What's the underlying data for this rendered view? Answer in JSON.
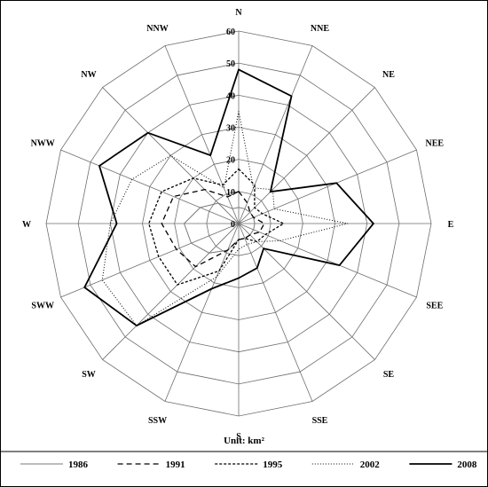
{
  "chart_data": {
    "type": "radar",
    "directions": [
      "N",
      "NNE",
      "NE",
      "NEE",
      "E",
      "SEE",
      "SE",
      "SSE",
      "S",
      "SSW",
      "SW",
      "SWW",
      "W",
      "NWW",
      "NW",
      "NNW"
    ],
    "radial_ticks": [
      0,
      10,
      20,
      30,
      40,
      50,
      60
    ],
    "rmax": 60,
    "unit_label": "Unit:  km²",
    "series": [
      {
        "name": "1986",
        "style": "solid-thin",
        "color": "#7a7a7a",
        "values": [
          5,
          5,
          5,
          5,
          5,
          5,
          5,
          5,
          5,
          9,
          13,
          16,
          17,
          13,
          9,
          5
        ]
      },
      {
        "name": "1991",
        "style": "dashed",
        "color": "#000000",
        "values": [
          10,
          7,
          5,
          5,
          8,
          7,
          5,
          5,
          5,
          9,
          19,
          21,
          24,
          22,
          15,
          9
        ]
      },
      {
        "name": "1995",
        "style": "short-dash",
        "color": "#000000",
        "values": [
          17,
          13,
          7,
          8,
          14,
          9,
          8,
          5,
          5,
          16,
          27,
          27,
          28,
          26,
          20,
          13
        ]
      },
      {
        "name": "2002",
        "style": "dotted",
        "color": "#000000",
        "values": [
          35,
          12,
          15,
          12,
          34,
          14,
          8,
          7,
          8,
          18,
          45,
          46,
          40,
          36,
          30,
          12
        ]
      },
      {
        "name": "2008",
        "style": "solid-thick",
        "color": "#000000",
        "values": [
          48,
          43,
          14,
          33,
          42,
          34,
          11,
          15,
          17,
          22,
          45,
          52,
          38,
          47,
          40,
          23
        ]
      }
    ]
  }
}
